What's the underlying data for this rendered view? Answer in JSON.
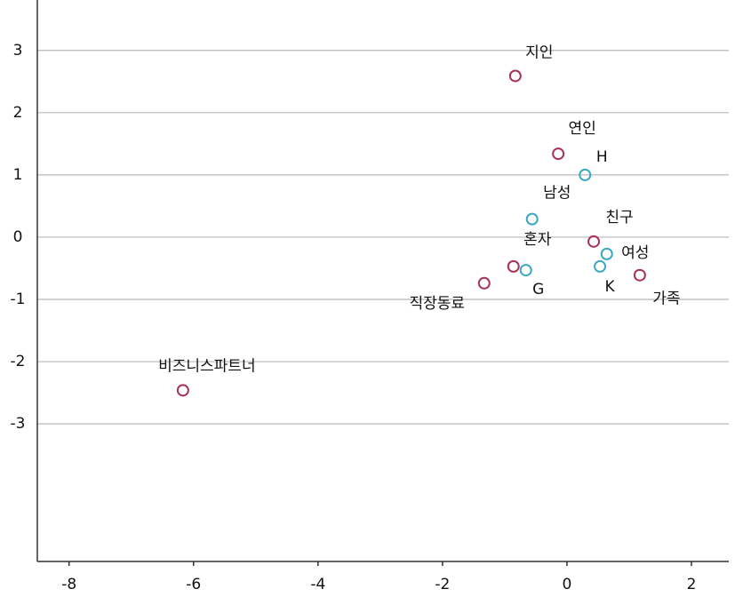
{
  "chart_data": {
    "type": "scatter",
    "xlim": [
      -8.51,
      2.6
    ],
    "ylim": [
      -5.21,
      3.81
    ],
    "xticks": [
      -8,
      -6,
      -4,
      -2,
      0,
      2
    ],
    "yticks": [
      -3,
      -2,
      -1,
      0,
      1,
      2,
      3
    ],
    "grid": true,
    "series": [
      {
        "color": "#a8305c",
        "labels": [
          "지인",
          "연인",
          "친구",
          "가족",
          "직장동료",
          "비즈니스파트너",
          "혼자"
        ],
        "x": [
          -0.83,
          -0.14,
          0.43,
          1.17,
          -1.33,
          -6.17,
          -0.86
        ],
        "values": [
          2.59,
          1.34,
          -0.07,
          -0.61,
          -0.74,
          -2.46,
          -0.47
        ]
      },
      {
        "color": "#3ba8c4",
        "labels": [
          "H",
          "남성",
          "여성",
          "K",
          "G"
        ],
        "x": [
          0.29,
          -0.56,
          0.64,
          0.53,
          -0.66
        ],
        "values": [
          1.0,
          0.29,
          -0.27,
          -0.47,
          -0.53
        ]
      }
    ]
  }
}
